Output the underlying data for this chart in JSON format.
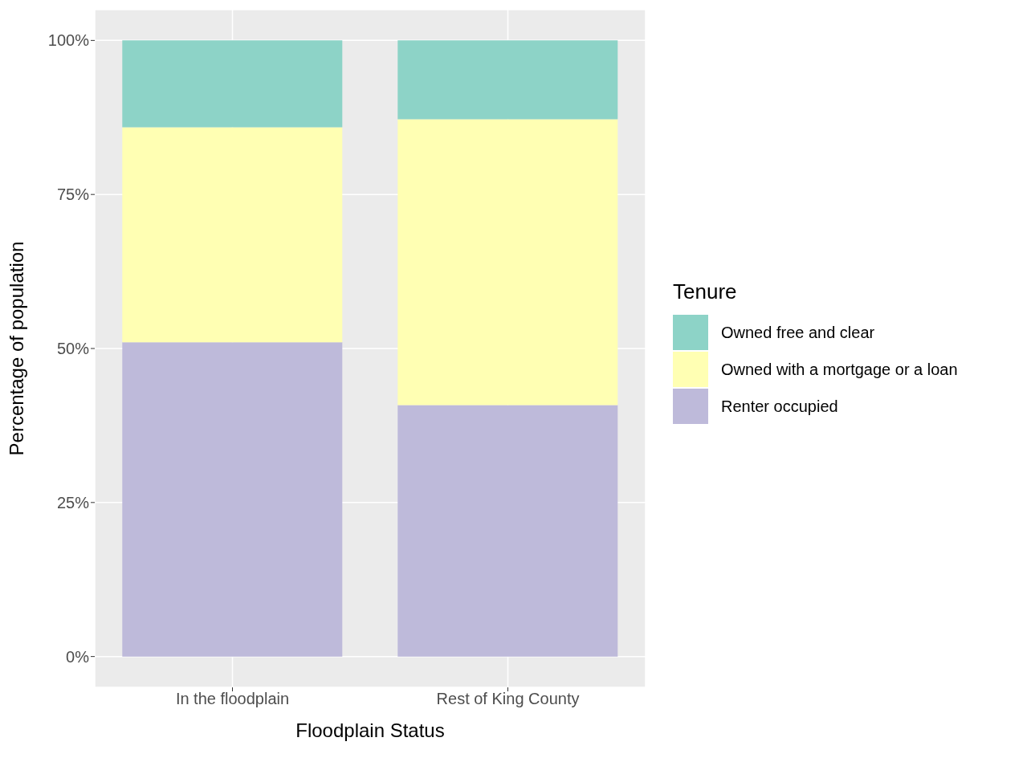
{
  "chart_data": {
    "type": "bar",
    "stacked": true,
    "xlabel": "Floodplain Status",
    "ylabel": "Percentage of population",
    "legend_title": "Tenure",
    "categories": [
      "In the floodplain",
      "Rest of King County"
    ],
    "series": [
      {
        "name": "Renter occupied",
        "color": "#bebada",
        "values": [
          51.0,
          40.8
        ]
      },
      {
        "name": "Owned with a mortgage or a loan",
        "color": "#ffffb3",
        "values": [
          34.9,
          46.4
        ]
      },
      {
        "name": "Owned free and clear",
        "color": "#8dd3c7",
        "values": [
          14.1,
          12.8
        ]
      }
    ],
    "ylim": [
      -5,
      105
    ],
    "yticks": [
      {
        "value": 0,
        "label": "0%"
      },
      {
        "value": 25,
        "label": "25%"
      },
      {
        "value": 50,
        "label": "50%"
      },
      {
        "value": 75,
        "label": "75%"
      },
      {
        "value": 100,
        "label": "100%"
      }
    ],
    "grid": true,
    "legend": "right"
  }
}
